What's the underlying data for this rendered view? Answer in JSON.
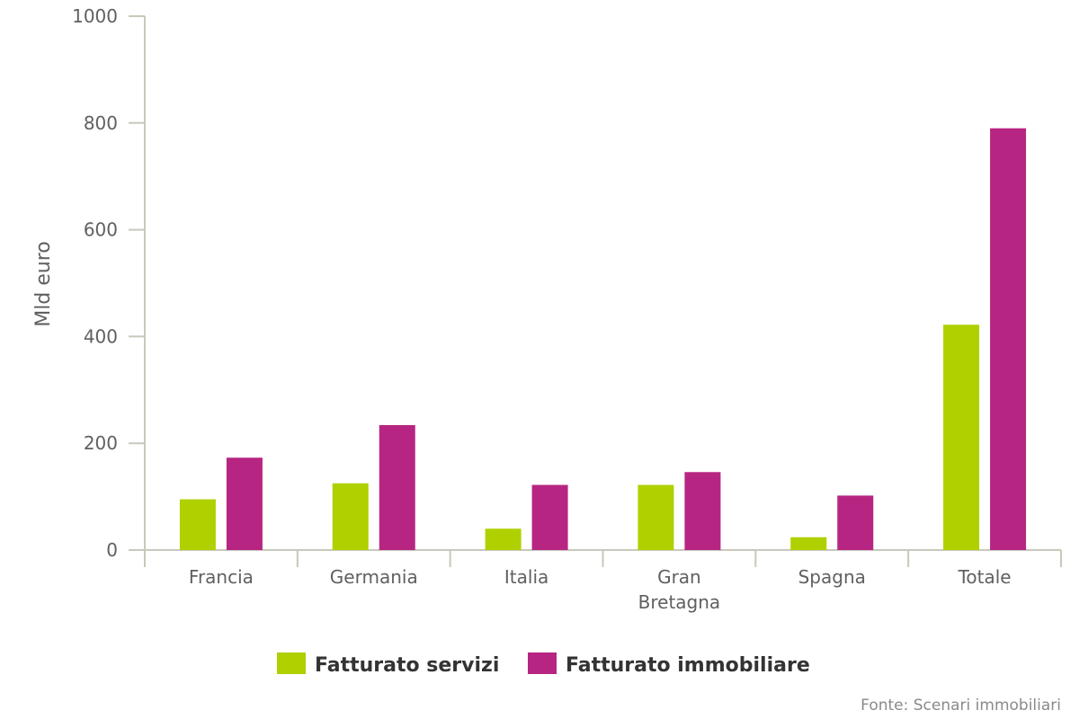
{
  "chart_data": {
    "type": "bar",
    "ylabel": "Mld euro",
    "ylim": [
      0,
      1000
    ],
    "yticks": [
      0,
      200,
      400,
      600,
      800,
      1000
    ],
    "categories": [
      [
        "Francia"
      ],
      [
        "Germania"
      ],
      [
        "Italia"
      ],
      [
        "Gran",
        "Bretagna"
      ],
      [
        "Spagna"
      ],
      [
        "Totale"
      ]
    ],
    "series": [
      {
        "name": "Fatturato servizi",
        "color": "#b0d000",
        "values": [
          95,
          125,
          40,
          122,
          24,
          422
        ]
      },
      {
        "name": "Fatturato immobiliare",
        "color": "#b72582",
        "values": [
          173,
          234,
          122,
          146,
          102,
          790
        ]
      }
    ],
    "legend_position": "bottom",
    "grid": false,
    "source": "Fonte: Scenari immobiliari"
  }
}
